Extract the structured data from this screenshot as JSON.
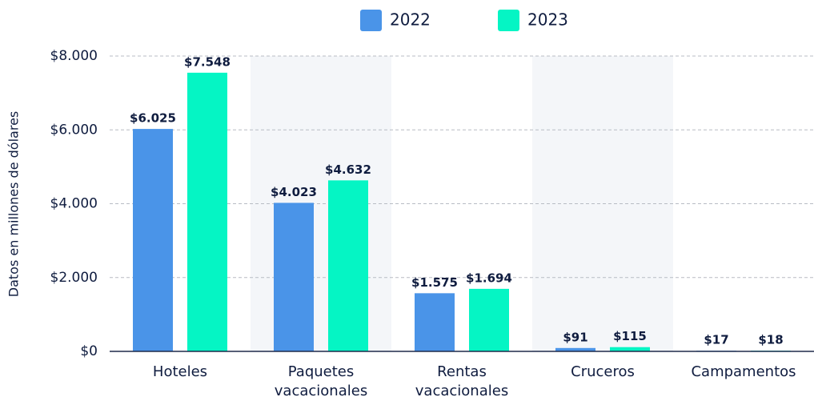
{
  "chart_data": {
    "type": "bar",
    "y_label": "Datos en millones de dólares",
    "categories": [
      "Hoteles",
      "Paquetes vacacionales",
      "Rentas vacacionales",
      "Cruceros",
      "Campamentos"
    ],
    "series": [
      {
        "name": "2022",
        "color": "#4a94e8",
        "values": [
          6025,
          4023,
          1575,
          91,
          17
        ],
        "value_labels": [
          "$6.025",
          "$4.023",
          "$1.575",
          "$91",
          "$17"
        ]
      },
      {
        "name": "2023",
        "color": "#05f5c4",
        "values": [
          7548,
          4632,
          1694,
          115,
          18
        ],
        "value_labels": [
          "$7.548",
          "$4.632",
          "$1.694",
          "$115",
          "$18"
        ]
      }
    ],
    "ylim": [
      0,
      8000
    ],
    "yticks": [
      {
        "value": 0,
        "label": "$0"
      },
      {
        "value": 2000,
        "label": "$2.000"
      },
      {
        "value": 4000,
        "label": "$4.000"
      },
      {
        "value": 6000,
        "label": "$6.000"
      },
      {
        "value": 8000,
        "label": "$8.000"
      }
    ],
    "grid": true,
    "legend": "top"
  }
}
